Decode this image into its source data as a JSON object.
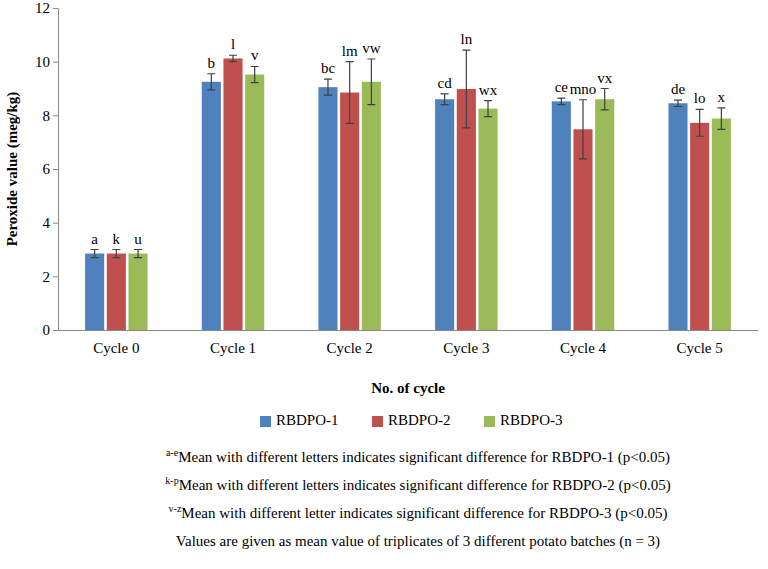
{
  "chart_data": {
    "type": "bar",
    "y_label": "Peroxide value (meg/kg)",
    "x_label": "No. of cycle",
    "categories": [
      "Cycle 0",
      "Cycle 1",
      "Cycle 2",
      "Cycle 3",
      "Cycle 4",
      "Cycle 5"
    ],
    "ylim": [
      0,
      12
    ],
    "yticks": [
      0,
      2,
      4,
      6,
      8,
      10,
      12
    ],
    "grid": false,
    "legend": "bottom",
    "series": [
      {
        "name": "RBDPO-1",
        "color": "#4f81bd",
        "values": [
          2.85,
          9.25,
          9.05,
          8.6,
          8.52,
          8.45
        ],
        "errors": [
          0.15,
          0.3,
          0.3,
          0.2,
          0.12,
          0.12
        ],
        "letters": [
          "a",
          "b",
          "bc",
          "cd",
          "ce",
          "de"
        ]
      },
      {
        "name": "RBDPO-2",
        "color": "#c0504d",
        "values": [
          2.85,
          10.12,
          8.85,
          8.98,
          7.48,
          7.72
        ],
        "errors": [
          0.15,
          0.12,
          1.15,
          1.45,
          1.1,
          0.5
        ],
        "letters": [
          "k",
          "l",
          "lm",
          "ln",
          "mno",
          "lo"
        ]
      },
      {
        "name": "RBDPO-3",
        "color": "#9bbb59",
        "values": [
          2.85,
          9.52,
          9.25,
          8.25,
          8.6,
          7.88
        ],
        "errors": [
          0.15,
          0.3,
          0.85,
          0.3,
          0.4,
          0.4
        ],
        "letters": [
          "u",
          "v",
          "vw",
          "wx",
          "vx",
          "x"
        ]
      }
    ],
    "footnotes": [
      {
        "superscript": "a-e",
        "text": "Mean with different letters indicates significant difference for RBDPO-1 (p<0.05)"
      },
      {
        "superscript": "k-p",
        "text": "Mean with different letters indicates significant difference for RBDPO-2 (p<0.05)"
      },
      {
        "superscript": "v-z",
        "text": "Mean with different letter indicates significant difference for RBDPO-3 (p<0.05)"
      },
      {
        "text": "Values are given as mean value of triplicates of 3 different potato batches (n = 3)"
      }
    ]
  }
}
